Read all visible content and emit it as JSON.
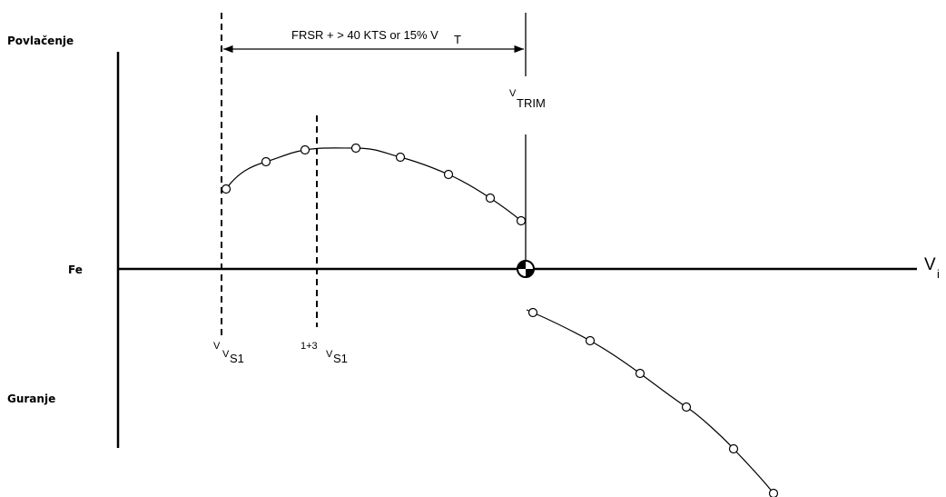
{
  "labels": {
    "pull": "Povlačenje",
    "push": "Guranje",
    "force": "Fe",
    "speed_axis_main": "V",
    "speed_axis_sub": "i",
    "range_text": "FRSR + > 40 KTS  or 15% V",
    "range_sub": "T",
    "trim_main": "V",
    "trim_sub": "TRIM",
    "vs1_sup": "V",
    "vs1_main": "V",
    "vs1_sub": "S1",
    "vs13_sup": "1+3",
    "vs13_main": "V",
    "vs13_sub": "S1"
  },
  "colors": {
    "ink": "#000000",
    "background": "#ffffff"
  }
}
